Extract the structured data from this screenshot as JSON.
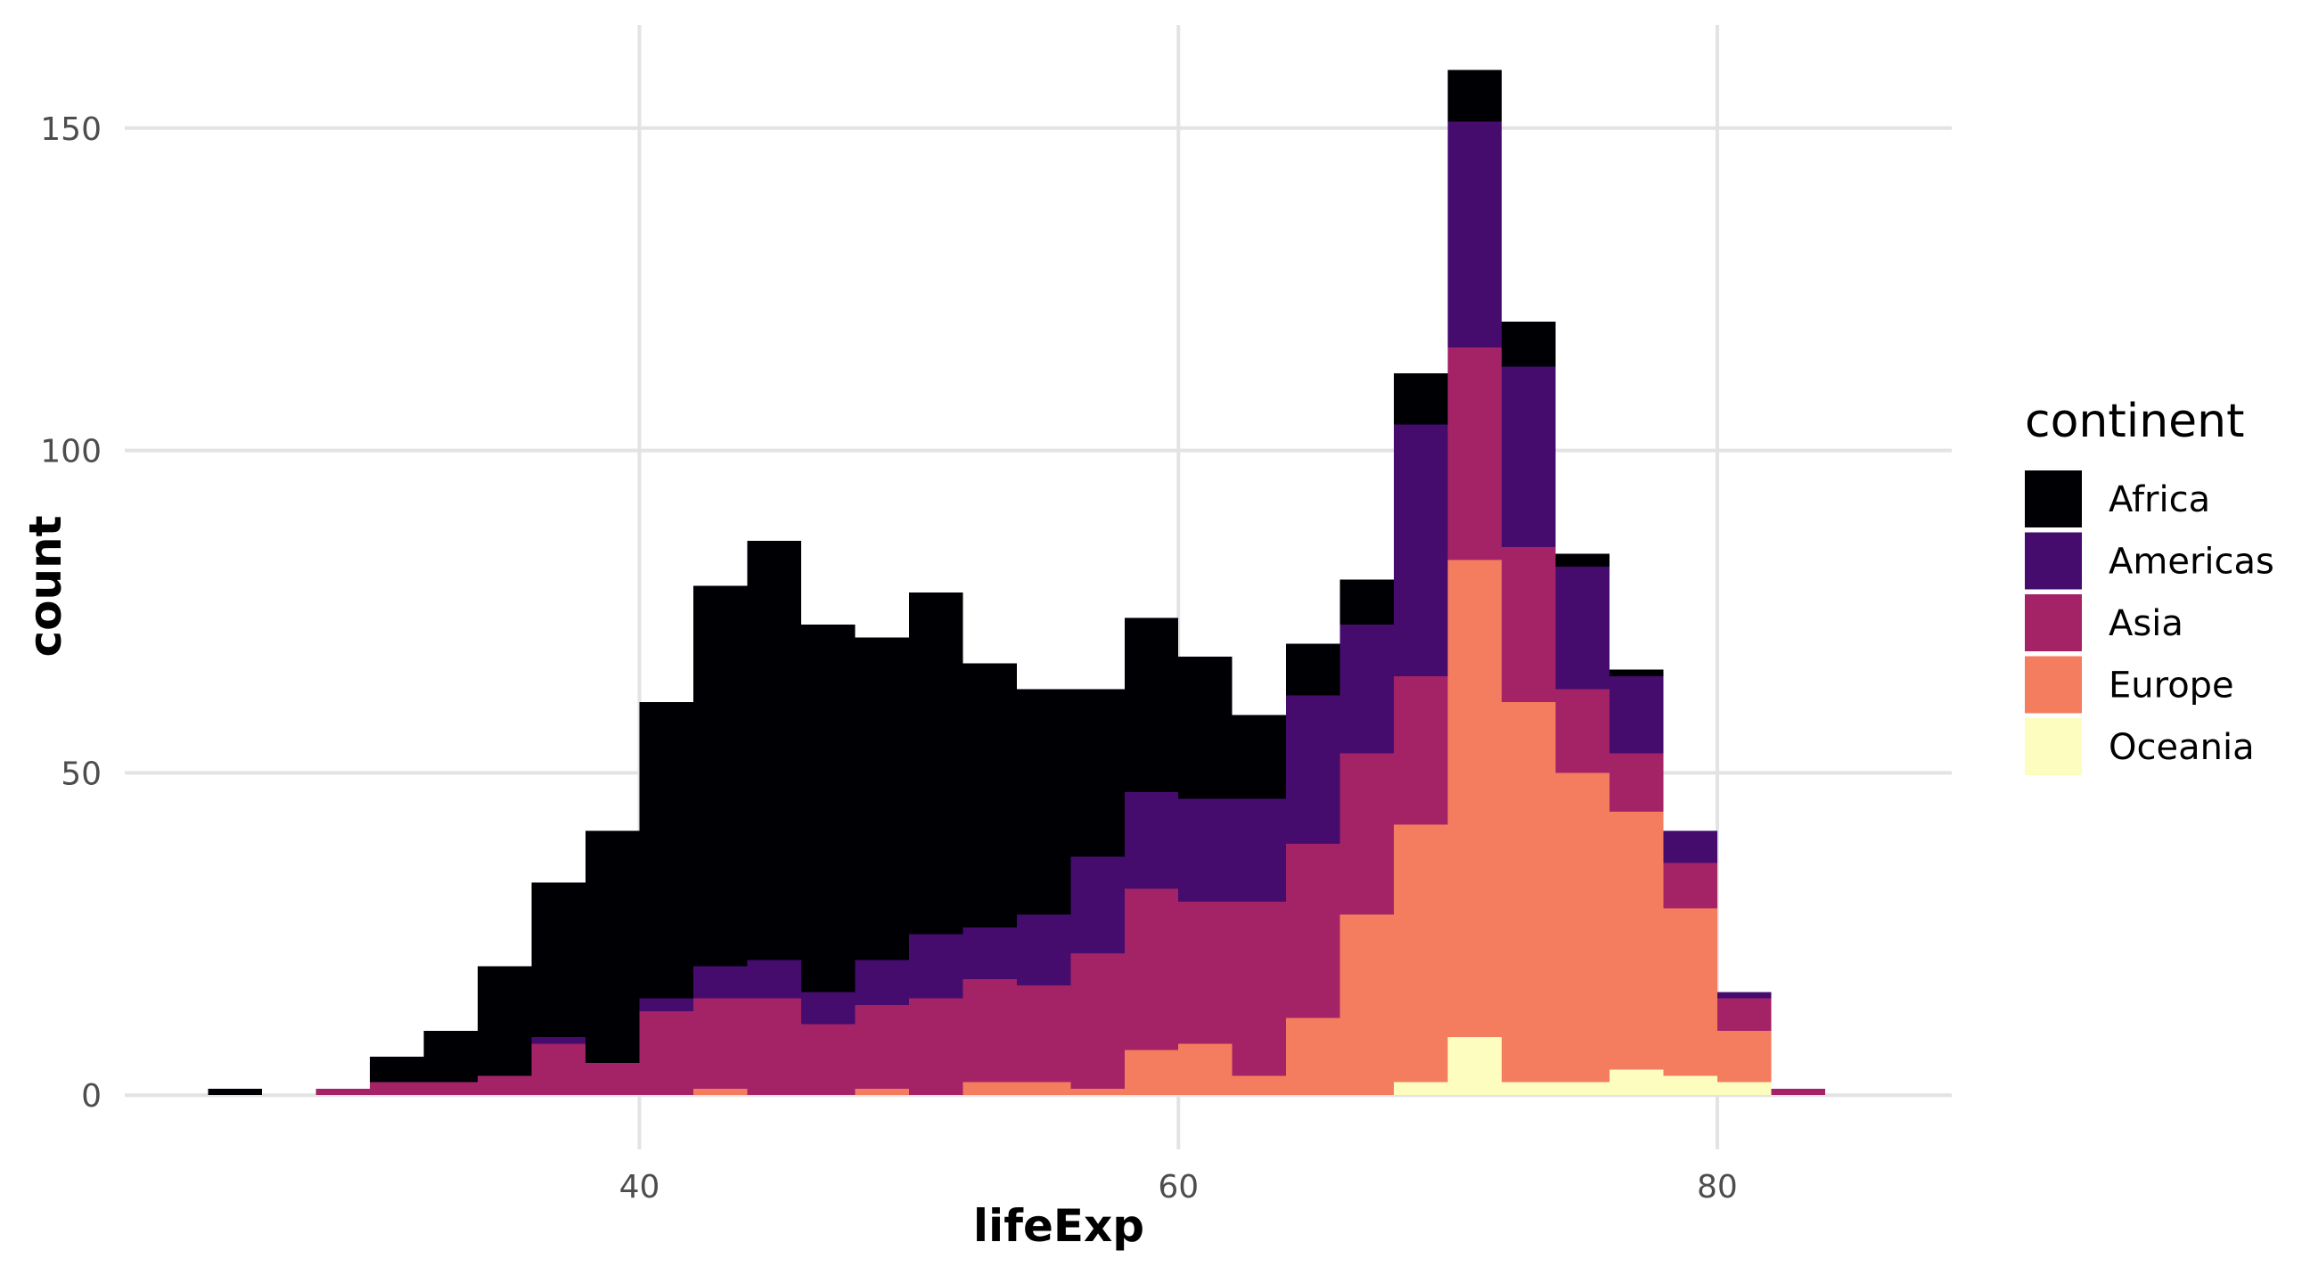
{
  "chart_data": {
    "type": "bar",
    "stacked": true,
    "title": "",
    "xlabel": "lifeExp",
    "ylabel": "count",
    "xlim": [
      20.9,
      88.7
    ],
    "ylim": [
      -8.4,
      166
    ],
    "x_ticks": [
      40,
      60,
      80
    ],
    "y_ticks": [
      0,
      50,
      100,
      150
    ],
    "grid": true,
    "bin_width": 2,
    "x": [
      25,
      27,
      29,
      31,
      33,
      35,
      37,
      39,
      41,
      43,
      45,
      47,
      49,
      51,
      53,
      55,
      57,
      59,
      61,
      63,
      65,
      67,
      69,
      71,
      73,
      75,
      77,
      79,
      81,
      83
    ],
    "legend": {
      "title": "continent",
      "position": "right"
    },
    "series": [
      {
        "name": "Oceania",
        "color": "#FCFDBF",
        "values": [
          0,
          0,
          0,
          0,
          0,
          0,
          0,
          0,
          0,
          0,
          0,
          0,
          0,
          0,
          0,
          0,
          0,
          0,
          0,
          0,
          0,
          0,
          2,
          9,
          2,
          2,
          4,
          3,
          2,
          0
        ]
      },
      {
        "name": "Europe",
        "color": "#F57D5F",
        "values": [
          0,
          0,
          0,
          0,
          0,
          0,
          0,
          0,
          0,
          1,
          0,
          0,
          1,
          0,
          2,
          2,
          1,
          7,
          8,
          3,
          12,
          28,
          40,
          74,
          59,
          48,
          40,
          26,
          8,
          0
        ]
      },
      {
        "name": "Asia",
        "color": "#A42366",
        "values": [
          0,
          0,
          1,
          2,
          2,
          3,
          8,
          5,
          13,
          14,
          15,
          11,
          13,
          15,
          16,
          15,
          21,
          25,
          22,
          27,
          27,
          25,
          23,
          33,
          24,
          13,
          9,
          7,
          5,
          1
        ]
      },
      {
        "name": "Americas",
        "color": "#450C6E",
        "values": [
          0,
          0,
          0,
          0,
          0,
          0,
          1,
          0,
          2,
          5,
          6,
          5,
          7,
          10,
          8,
          11,
          15,
          15,
          16,
          16,
          23,
          20,
          39,
          35,
          28,
          19,
          12,
          5,
          1,
          0
        ]
      },
      {
        "name": "Africa",
        "color": "#000004",
        "values": [
          1,
          0,
          0,
          4,
          8,
          17,
          24,
          36,
          46,
          59,
          65,
          57,
          50,
          53,
          41,
          35,
          26,
          27,
          22,
          13,
          8,
          7,
          8,
          8,
          7,
          2,
          1,
          0,
          0,
          0
        ]
      }
    ]
  }
}
